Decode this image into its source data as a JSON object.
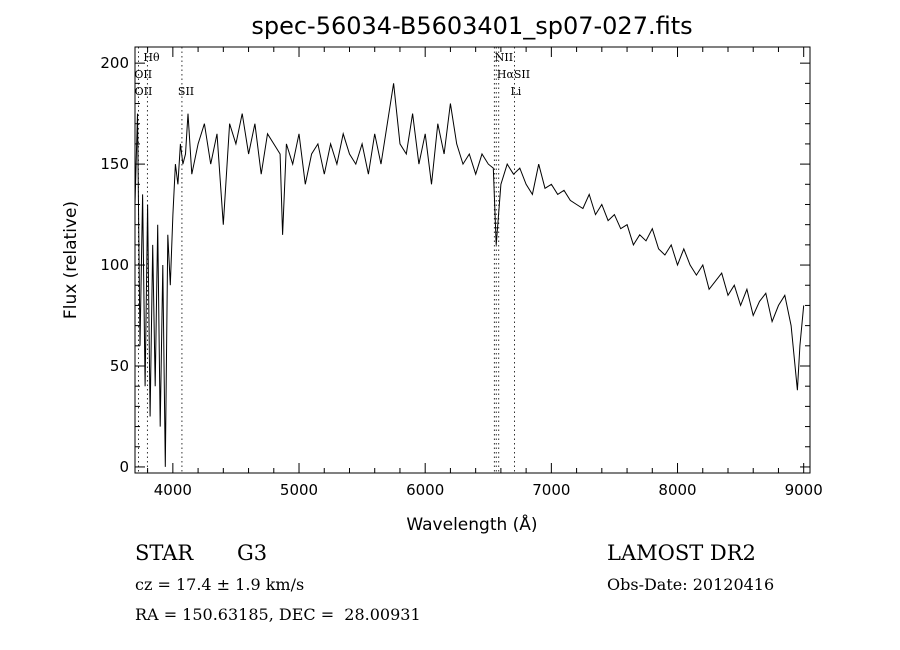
{
  "chart_data": {
    "type": "line",
    "title": "spec-56034-B5603401_sp07-027.fits",
    "xlabel": "Wavelength (Å)",
    "ylabel": "Flux (relative)",
    "xlim": [
      3700,
      9050
    ],
    "ylim": [
      -3,
      208
    ],
    "x_ticks": [
      4000,
      5000,
      6000,
      7000,
      8000,
      9000
    ],
    "y_ticks": [
      0,
      50,
      100,
      150,
      200
    ],
    "grid": false,
    "series": [
      {
        "x": [
          3700,
          3720,
          3740,
          3760,
          3780,
          3800,
          3820,
          3840,
          3860,
          3880,
          3900,
          3920,
          3940,
          3960,
          3980,
          4000,
          4020,
          4040,
          4060,
          4080,
          4100,
          4120,
          4150,
          4200,
          4250,
          4300,
          4350,
          4400,
          4450,
          4500,
          4550,
          4600,
          4650,
          4700,
          4750,
          4800,
          4850,
          4870,
          4900,
          4950,
          5000,
          5050,
          5100,
          5150,
          5200,
          5250,
          5300,
          5350,
          5400,
          5450,
          5500,
          5550,
          5600,
          5650,
          5700,
          5750,
          5800,
          5850,
          5900,
          5950,
          6000,
          6050,
          6100,
          6150,
          6200,
          6250,
          6300,
          6350,
          6400,
          6450,
          6500,
          6540,
          6563,
          6600,
          6650,
          6700,
          6750,
          6800,
          6850,
          6900,
          6950,
          7000,
          7050,
          7100,
          7150,
          7200,
          7250,
          7300,
          7350,
          7400,
          7450,
          7500,
          7550,
          7600,
          7650,
          7700,
          7750,
          7800,
          7850,
          7900,
          7950,
          8000,
          8050,
          8100,
          8150,
          8200,
          8250,
          8300,
          8350,
          8400,
          8450,
          8500,
          8550,
          8600,
          8650,
          8700,
          8750,
          8800,
          8850,
          8900,
          8950,
          8970,
          9000
        ],
        "y": [
          130,
          175,
          60,
          135,
          40,
          130,
          25,
          110,
          40,
          120,
          20,
          100,
          0,
          115,
          90,
          125,
          150,
          140,
          160,
          150,
          155,
          175,
          145,
          160,
          170,
          150,
          165,
          120,
          170,
          160,
          175,
          155,
          170,
          145,
          165,
          160,
          155,
          115,
          160,
          150,
          165,
          140,
          155,
          160,
          145,
          160,
          150,
          165,
          155,
          150,
          160,
          145,
          165,
          150,
          170,
          190,
          160,
          155,
          175,
          150,
          165,
          140,
          170,
          155,
          180,
          160,
          150,
          155,
          145,
          155,
          150,
          148,
          110,
          140,
          150,
          145,
          148,
          140,
          135,
          150,
          138,
          140,
          135,
          137,
          132,
          130,
          128,
          135,
          125,
          130,
          122,
          125,
          118,
          120,
          110,
          115,
          112,
          118,
          108,
          105,
          110,
          100,
          108,
          100,
          95,
          100,
          88,
          92,
          96,
          85,
          90,
          80,
          88,
          75,
          82,
          86,
          72,
          80,
          85,
          70,
          38,
          60,
          80
        ]
      }
    ],
    "line_markers": [
      {
        "label": "Hθ",
        "x": 3798,
        "row": 0
      },
      {
        "label": "OII",
        "x": 3727,
        "row": 1
      },
      {
        "label": "OII",
        "x": 3729,
        "row": 2
      },
      {
        "label": "SII",
        "x": 4072,
        "row": 2
      },
      {
        "label": "NII",
        "x": 6583,
        "row": 0
      },
      {
        "label": "HαSII",
        "x": 6600,
        "row": 1
      },
      {
        "label": "Li",
        "x": 6708,
        "row": 2
      }
    ],
    "marker_lines_x": [
      3727,
      3798,
      4072,
      6548,
      6563,
      6583,
      6708
    ]
  },
  "info": {
    "object_class": "STAR",
    "subclass": "G3",
    "survey": "LAMOST DR2",
    "redshift": "cz = 17.4 ± 1.9 km/s",
    "obs_date": "Obs-Date: 20120416",
    "coords": "RA = 150.63185, DEC =  28.00931"
  }
}
